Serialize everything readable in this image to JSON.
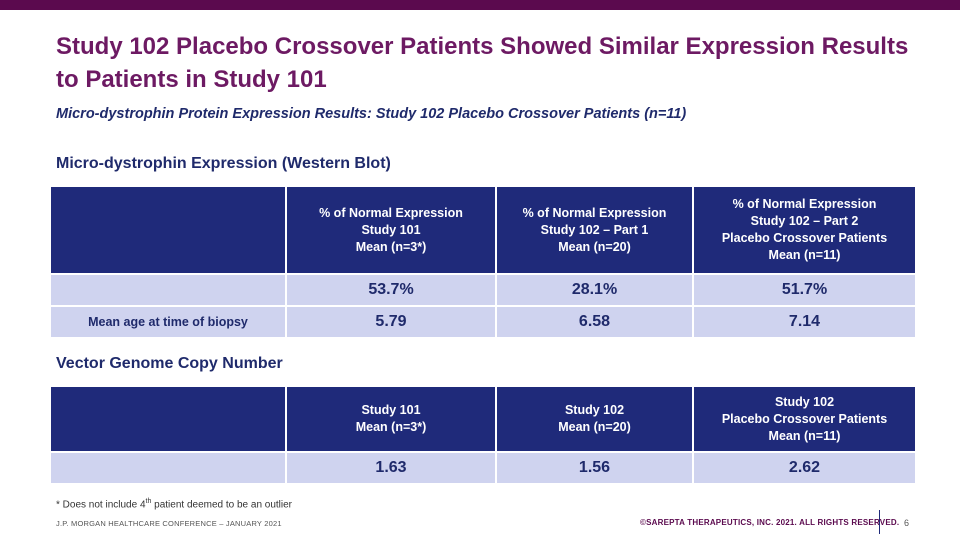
{
  "title": "Study 102 Placebo Crossover Patients Showed Similar Expression Results to Patients in Study 101",
  "subtitle": "Micro-dystrophin Protein Expression Results: Study 102 Placebo Crossover Patients (n=11)",
  "western_blot": {
    "heading": "Micro-dystrophin Expression (Western Blot)",
    "headers": [
      [
        "% of Normal Expression",
        "Study 101",
        "Mean (n=3*)"
      ],
      [
        "% of Normal Expression",
        "Study 102 – Part 1",
        "Mean (n=20)"
      ],
      [
        "% of Normal Expression",
        "Study 102 – Part 2",
        "Placebo Crossover Patients",
        "Mean (n=11)"
      ]
    ],
    "rows": [
      {
        "label": "",
        "values": [
          "53.7%",
          "28.1%",
          "51.7%"
        ]
      },
      {
        "label": "Mean age at time of biopsy",
        "values": [
          "5.79",
          "6.58",
          "7.14"
        ]
      }
    ]
  },
  "vector_genome": {
    "heading": "Vector Genome Copy Number",
    "headers": [
      [
        "Study 101",
        "Mean (n=3*)"
      ],
      [
        "Study 102",
        "Mean (n=20)"
      ],
      [
        "Study 102",
        "Placebo Crossover Patients",
        "Mean (n=11)"
      ]
    ],
    "rows": [
      {
        "label": "",
        "values": [
          "1.63",
          "1.56",
          "2.62"
        ]
      }
    ]
  },
  "footnote": {
    "pre": "* Does not include 4",
    "sup": "th",
    "post": " patient deemed to be an outlier"
  },
  "footer": {
    "conference": "J.P. MORGAN HEALTHCARE CONFERENCE – JANUARY 2021",
    "copyright": "©SAREPTA THERAPEUTICS, INC. 2021.  ALL RIGHTS RESERVED.",
    "page_number": "6"
  },
  "colors": {
    "title": "#6d1a63",
    "accent_bar": "#5b0a4e",
    "table_header": "#1f2a7a",
    "table_cell": "#cfd3ef",
    "text_navy": "#1f2a6b"
  }
}
